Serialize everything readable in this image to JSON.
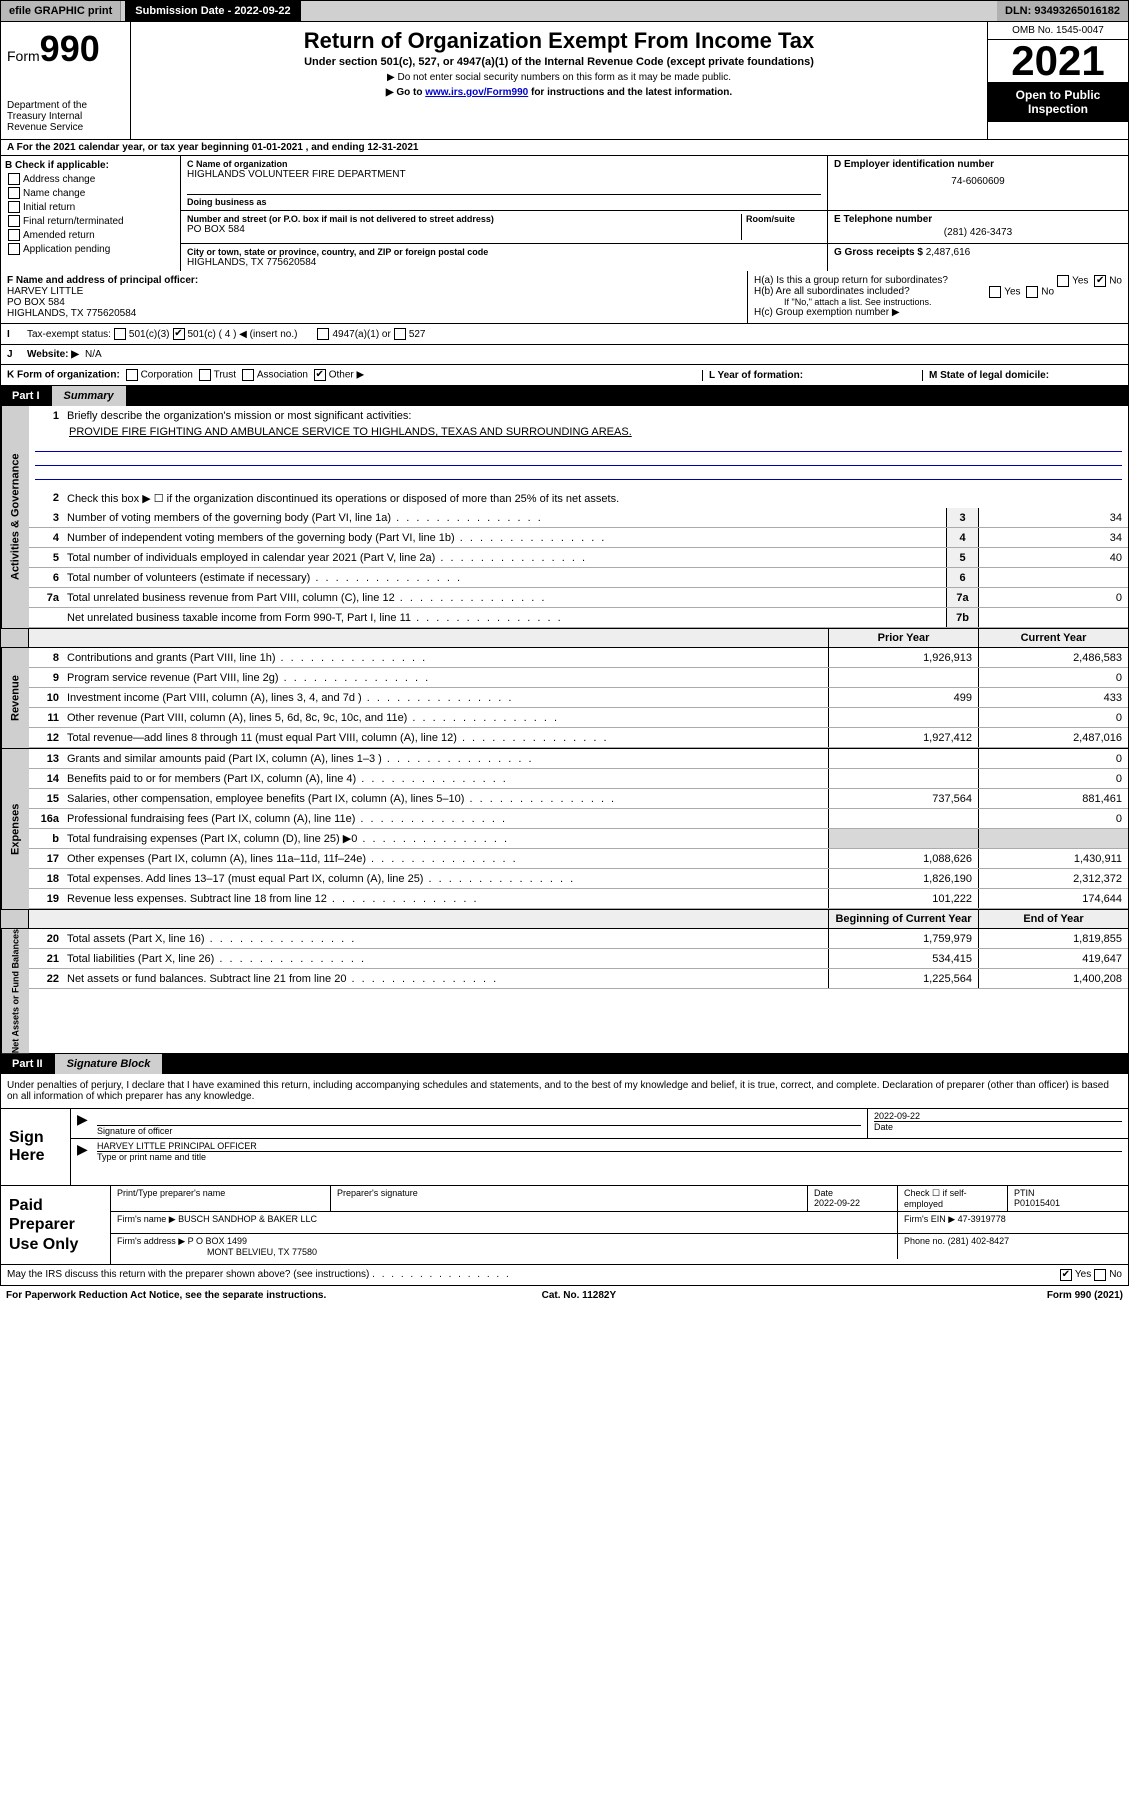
{
  "topbar": {
    "efile": "efile GRAPHIC print",
    "submission_label": "Submission Date - 2022-09-22",
    "dln_label": "DLN: 93493265016182"
  },
  "header": {
    "form_prefix": "Form",
    "form_num": "990",
    "dept": "Department of the Treasury\nInternal Revenue Service",
    "title": "Return of Organization Exempt From Income Tax",
    "sub1": "Under section 501(c), 527, or 4947(a)(1) of the Internal Revenue Code (except private foundations)",
    "sub2": "▶ Do not enter social security numbers on this form as it may be made public.",
    "sub3_pre": "▶ Go to ",
    "sub3_link": "www.irs.gov/Form990",
    "sub3_post": " for instructions and the latest information.",
    "omb": "OMB No. 1545-0047",
    "year": "2021",
    "open": "Open to Public Inspection"
  },
  "periodA": {
    "text_pre": "A For the 2021 calendar year, or tax year beginning ",
    "begin": "01-01-2021",
    "mid": " , and ending ",
    "end": "12-31-2021"
  },
  "checkB": {
    "title": "B Check if applicable:",
    "items": [
      "Address change",
      "Name change",
      "Initial return",
      "Final return/terminated",
      "Amended return",
      "Application pending"
    ]
  },
  "C": {
    "name_lbl": "C Name of organization",
    "name": "HIGHLANDS VOLUNTEER FIRE DEPARTMENT",
    "dba_lbl": "Doing business as",
    "street_lbl": "Number and street (or P.O. box if mail is not delivered to street address)",
    "room_lbl": "Room/suite",
    "street": "PO BOX 584",
    "city_lbl": "City or town, state or province, country, and ZIP or foreign postal code",
    "city": "HIGHLANDS, TX  775620584"
  },
  "D": {
    "lbl": "D Employer identification number",
    "val": "74-6060609"
  },
  "E": {
    "lbl": "E Telephone number",
    "val": "(281) 426-3473"
  },
  "G": {
    "lbl": "G Gross receipts $",
    "val": "2,487,616"
  },
  "F": {
    "lbl": "F Name and address of principal officer:",
    "name": "HARVEY LITTLE",
    "addr1": "PO BOX 584",
    "addr2": "HIGHLANDS, TX  775620584"
  },
  "H": {
    "a": "H(a)  Is this a group return for subordinates?",
    "b": "H(b)  Are all subordinates included?",
    "note": "If \"No,\" attach a list. See instructions.",
    "c": "H(c)  Group exemption number ▶",
    "yes": "Yes",
    "no": "No"
  },
  "I": {
    "lbl": "Tax-exempt status:",
    "o1": "501(c)(3)",
    "o2": "501(c) ( 4 ) ◀ (insert no.)",
    "o3": "4947(a)(1) or",
    "o4": "527"
  },
  "J": {
    "lbl": "Website: ▶",
    "val": "N/A"
  },
  "K": {
    "lbl": "K Form of organization:",
    "o1": "Corporation",
    "o2": "Trust",
    "o3": "Association",
    "o4": "Other ▶"
  },
  "L": {
    "lbl": "L Year of formation:"
  },
  "M": {
    "lbl": "M State of legal domicile:"
  },
  "partI": {
    "num": "Part I",
    "title": "Summary",
    "line1_lbl": "Briefly describe the organization's mission or most significant activities:",
    "mission": "PROVIDE FIRE FIGHTING AND AMBULANCE SERVICE TO HIGHLANDS, TEXAS AND SURROUNDING AREAS.",
    "line2": "Check this box ▶ ☐  if the organization discontinued its operations or disposed of more than 25% of its net assets.",
    "tabs": {
      "gov": "Activities & Governance",
      "rev": "Revenue",
      "exp": "Expenses",
      "net": "Net Assets or Fund Balances"
    },
    "rows_gov": [
      {
        "n": "3",
        "t": "Number of voting members of the governing body (Part VI, line 1a)",
        "box": "3",
        "v": "34"
      },
      {
        "n": "4",
        "t": "Number of independent voting members of the governing body (Part VI, line 1b)",
        "box": "4",
        "v": "34"
      },
      {
        "n": "5",
        "t": "Total number of individuals employed in calendar year 2021 (Part V, line 2a)",
        "box": "5",
        "v": "40"
      },
      {
        "n": "6",
        "t": "Total number of volunteers (estimate if necessary)",
        "box": "6",
        "v": ""
      },
      {
        "n": "7a",
        "t": "Total unrelated business revenue from Part VIII, column (C), line 12",
        "box": "7a",
        "v": "0"
      },
      {
        "n": "",
        "t": "Net unrelated business taxable income from Form 990-T, Part I, line 11",
        "box": "7b",
        "v": ""
      }
    ],
    "col_hdr_prior": "Prior Year",
    "col_hdr_curr": "Current Year",
    "rows_rev": [
      {
        "n": "8",
        "t": "Contributions and grants (Part VIII, line 1h)",
        "p": "1,926,913",
        "c": "2,486,583"
      },
      {
        "n": "9",
        "t": "Program service revenue (Part VIII, line 2g)",
        "p": "",
        "c": "0"
      },
      {
        "n": "10",
        "t": "Investment income (Part VIII, column (A), lines 3, 4, and 7d )",
        "p": "499",
        "c": "433"
      },
      {
        "n": "11",
        "t": "Other revenue (Part VIII, column (A), lines 5, 6d, 8c, 9c, 10c, and 11e)",
        "p": "",
        "c": "0"
      },
      {
        "n": "12",
        "t": "Total revenue—add lines 8 through 11 (must equal Part VIII, column (A), line 12)",
        "p": "1,927,412",
        "c": "2,487,016"
      }
    ],
    "rows_exp": [
      {
        "n": "13",
        "t": "Grants and similar amounts paid (Part IX, column (A), lines 1–3 )",
        "p": "",
        "c": "0"
      },
      {
        "n": "14",
        "t": "Benefits paid to or for members (Part IX, column (A), line 4)",
        "p": "",
        "c": "0"
      },
      {
        "n": "15",
        "t": "Salaries, other compensation, employee benefits (Part IX, column (A), lines 5–10)",
        "p": "737,564",
        "c": "881,461"
      },
      {
        "n": "16a",
        "t": "Professional fundraising fees (Part IX, column (A), line 11e)",
        "p": "",
        "c": "0"
      },
      {
        "n": "b",
        "t": "Total fundraising expenses (Part IX, column (D), line 25) ▶0",
        "p": "shade",
        "c": "shade"
      },
      {
        "n": "17",
        "t": "Other expenses (Part IX, column (A), lines 11a–11d, 11f–24e)",
        "p": "1,088,626",
        "c": "1,430,911"
      },
      {
        "n": "18",
        "t": "Total expenses. Add lines 13–17 (must equal Part IX, column (A), line 25)",
        "p": "1,826,190",
        "c": "2,312,372"
      },
      {
        "n": "19",
        "t": "Revenue less expenses. Subtract line 18 from line 12",
        "p": "101,222",
        "c": "174,644"
      }
    ],
    "col_hdr_begin": "Beginning of Current Year",
    "col_hdr_end": "End of Year",
    "rows_net": [
      {
        "n": "20",
        "t": "Total assets (Part X, line 16)",
        "p": "1,759,979",
        "c": "1,819,855"
      },
      {
        "n": "21",
        "t": "Total liabilities (Part X, line 26)",
        "p": "534,415",
        "c": "419,647"
      },
      {
        "n": "22",
        "t": "Net assets or fund balances. Subtract line 21 from line 20",
        "p": "1,225,564",
        "c": "1,400,208"
      }
    ]
  },
  "partII": {
    "num": "Part II",
    "title": "Signature Block"
  },
  "penalty": "Under penalties of perjury, I declare that I have examined this return, including accompanying schedules and statements, and to the best of my knowledge and belief, it is true, correct, and complete. Declaration of preparer (other than officer) is based on all information of which preparer has any knowledge.",
  "sign": {
    "here": "Sign Here",
    "sig_lbl": "Signature of officer",
    "date_lbl": "Date",
    "date": "2022-09-22",
    "name": "HARVEY LITTLE  PRINCIPAL OFFICER",
    "name_lbl": "Type or print name and title"
  },
  "paid": {
    "title": "Paid Preparer Use Only",
    "h_name": "Print/Type preparer's name",
    "h_sig": "Preparer's signature",
    "h_date": "Date",
    "date": "2022-09-22",
    "check_lbl": "Check ☐ if self-employed",
    "ptin_lbl": "PTIN",
    "ptin": "P01015401",
    "firm_lbl": "Firm's name    ▶",
    "firm": "BUSCH SANDHOP & BAKER LLC",
    "ein_lbl": "Firm's EIN ▶",
    "ein": "47-3919778",
    "addr_lbl": "Firm's address ▶",
    "addr1": "P O BOX 1499",
    "addr2": "MONT BELVIEU, TX  77580",
    "phone_lbl": "Phone no.",
    "phone": "(281) 402-8427"
  },
  "discuss": {
    "q": "May the IRS discuss this return with the preparer shown above? (see instructions)",
    "yes": "Yes",
    "no": "No"
  },
  "footer": {
    "left": "For Paperwork Reduction Act Notice, see the separate instructions.",
    "mid": "Cat. No. 11282Y",
    "right": "Form 990 (2021)"
  }
}
